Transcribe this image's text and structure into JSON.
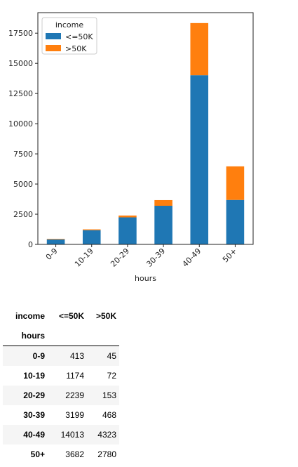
{
  "chart_data": {
    "type": "bar",
    "stacked": true,
    "categories": [
      "0-9",
      "10-19",
      "20-29",
      "30-39",
      "40-49",
      "50+"
    ],
    "series": [
      {
        "name": "<=50K",
        "values": [
          413,
          1174,
          2239,
          3199,
          14013,
          3682
        ],
        "color": "#1f77b4"
      },
      {
        "name": ">50K",
        "values": [
          45,
          72,
          153,
          468,
          4323,
          2780
        ],
        "color": "#ff7f0e"
      }
    ],
    "xlabel": "hours",
    "ylabel": "",
    "ylim": [
      0,
      19200
    ],
    "yticks": [
      0,
      2500,
      5000,
      7500,
      10000,
      12500,
      15000,
      17500
    ],
    "legend": {
      "title": "income",
      "placement": "top-left"
    },
    "grid": false
  },
  "table": {
    "columns_name": "income",
    "index_name": "hours",
    "columns": [
      "<=50K",
      ">50K"
    ],
    "rows": [
      {
        "index": "0-9",
        "values": [
          "413",
          "45"
        ]
      },
      {
        "index": "10-19",
        "values": [
          "1174",
          "72"
        ]
      },
      {
        "index": "20-29",
        "values": [
          "2239",
          "153"
        ]
      },
      {
        "index": "30-39",
        "values": [
          "3199",
          "468"
        ]
      },
      {
        "index": "40-49",
        "values": [
          "14013",
          "4323"
        ]
      },
      {
        "index": "50+",
        "values": [
          "3682",
          "2780"
        ]
      }
    ]
  }
}
